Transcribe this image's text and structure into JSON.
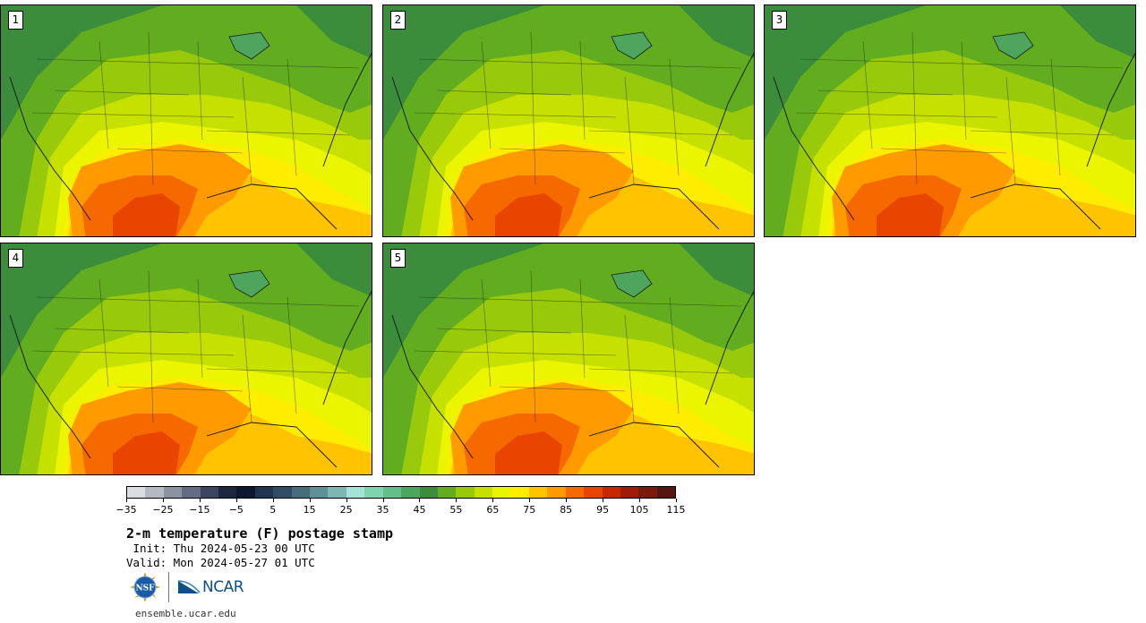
{
  "figure": {
    "title": "2-m temperature (F) postage stamp",
    "init": " Init: Thu 2024-05-23 00 UTC",
    "valid": "Valid: Mon 2024-05-27 01 UTC",
    "website": "ensemble.ucar.edu",
    "logos": {
      "nsf": "NSF",
      "ncar": "NCAR"
    }
  },
  "stamps": [
    {
      "label": "1"
    },
    {
      "label": "2"
    },
    {
      "label": "3"
    },
    {
      "label": "4"
    },
    {
      "label": "5"
    }
  ],
  "colorbar": {
    "units": "F",
    "tick_labels": [
      "−35",
      "−25",
      "−15",
      "−5",
      "5",
      "15",
      "25",
      "35",
      "45",
      "55",
      "65",
      "75",
      "85",
      "95",
      "105",
      "115"
    ],
    "colors": [
      "#dcdde0",
      "#b6b8c2",
      "#8d92a3",
      "#646c82",
      "#3b4562",
      "#1c2740",
      "#0c1730",
      "#1f3550",
      "#2f4d66",
      "#466c7e",
      "#5f8f97",
      "#7fb6b5",
      "#a5e3d6",
      "#7fd4b0",
      "#63bf8a",
      "#4ea55e",
      "#3b8c3b",
      "#62ad1f",
      "#98c90b",
      "#c6e000",
      "#ecf500",
      "#ffed00",
      "#ffc300",
      "#ff9a00",
      "#f66800",
      "#e84600",
      "#c82800",
      "#a01c08",
      "#7a1a0a",
      "#561610"
    ]
  }
}
